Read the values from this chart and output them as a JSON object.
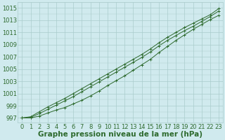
{
  "title": "Graphe pression niveau de la mer (hPa)",
  "x_values": [
    0,
    1,
    2,
    3,
    4,
    5,
    6,
    7,
    8,
    9,
    10,
    11,
    12,
    13,
    14,
    15,
    16,
    17,
    18,
    19,
    20,
    21,
    22,
    23
  ],
  "line1": [
    997.0,
    997.0,
    997.3,
    997.8,
    998.3,
    998.7,
    999.3,
    999.9,
    1000.6,
    1001.4,
    1002.3,
    1003.1,
    1003.9,
    1004.8,
    1005.7,
    1006.6,
    1007.7,
    1008.7,
    1009.7,
    1010.6,
    1011.5,
    1012.3,
    1013.1,
    1013.8
  ],
  "line2": [
    997.0,
    997.1,
    997.7,
    998.4,
    999.1,
    999.8,
    1000.5,
    1001.3,
    1002.1,
    1002.9,
    1003.7,
    1004.5,
    1005.3,
    1006.1,
    1006.9,
    1007.8,
    1008.8,
    1009.7,
    1010.5,
    1011.3,
    1012.0,
    1012.8,
    1013.6,
    1014.5
  ],
  "line3": [
    997.0,
    997.2,
    998.0,
    998.8,
    999.5,
    1000.2,
    1001.0,
    1001.8,
    1002.6,
    1003.4,
    1004.2,
    1005.0,
    1005.8,
    1006.6,
    1007.4,
    1008.3,
    1009.3,
    1010.2,
    1011.0,
    1011.8,
    1012.5,
    1013.2,
    1013.9,
    1014.9
  ],
  "line_color": "#2d6a2d",
  "marker": "+",
  "bg_color": "#d0eaee",
  "grid_color": "#aacccc",
  "ylim": [
    996.2,
    1016.0
  ],
  "yticks": [
    997,
    999,
    1001,
    1003,
    1005,
    1007,
    1009,
    1011,
    1013,
    1015
  ],
  "xlim": [
    -0.5,
    23.5
  ],
  "xticks": [
    0,
    1,
    2,
    3,
    4,
    5,
    6,
    7,
    8,
    9,
    10,
    11,
    12,
    13,
    14,
    15,
    16,
    17,
    18,
    19,
    20,
    21,
    22,
    23
  ],
  "title_fontsize": 7.5,
  "tick_fontsize": 6,
  "title_color": "#2d6a2d",
  "tick_color": "#2d6a2d"
}
